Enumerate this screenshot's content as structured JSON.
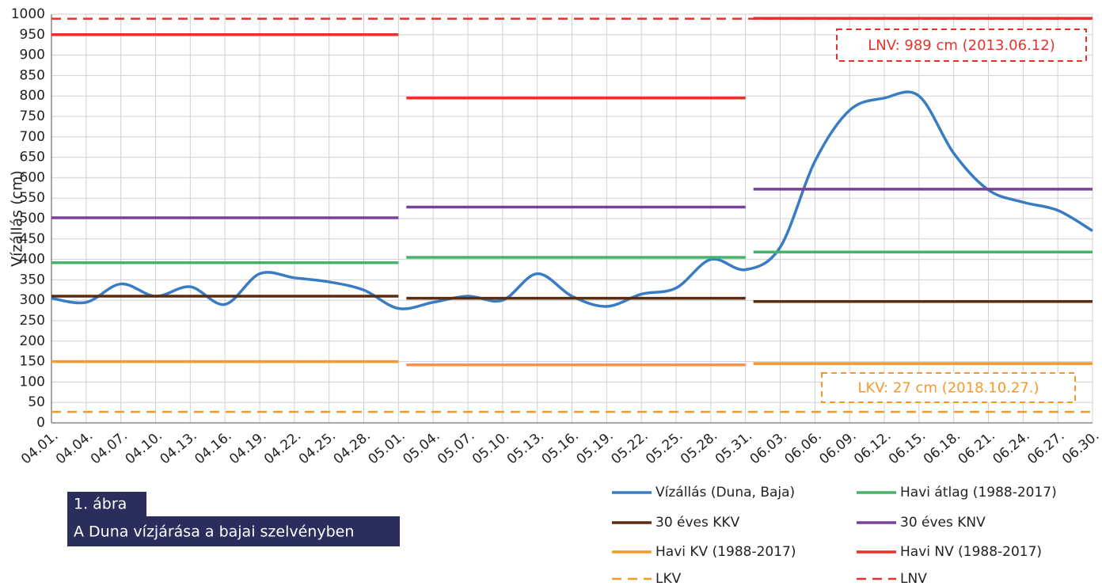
{
  "chart_data": {
    "type": "line",
    "y_label": "Vízállás (cm)",
    "categories": [
      "04.01.",
      "04.04.",
      "04.07.",
      "04.10.",
      "04.13.",
      "04.16.",
      "04.19.",
      "04.22.",
      "04.25.",
      "04.28.",
      "05.01.",
      "05.04.",
      "05.07.",
      "05.10.",
      "05.13.",
      "05.16.",
      "05.19.",
      "05.22.",
      "05.25.",
      "05.28.",
      "05.31.",
      "06.03.",
      "06.06.",
      "06.09.",
      "06.12.",
      "06.15.",
      "06.18.",
      "06.21.",
      "06.24.",
      "06.27.",
      "06.30."
    ],
    "ylim": [
      0,
      1000
    ],
    "yticks": [
      0,
      50,
      100,
      150,
      200,
      250,
      300,
      350,
      400,
      450,
      500,
      550,
      600,
      650,
      700,
      750,
      800,
      850,
      900,
      950,
      1000
    ],
    "grid": true,
    "series": [
      {
        "name": "Vízállás (Duna, Baja)",
        "color": "#3a7cc3",
        "style": "smooth",
        "values": [
          305,
          295,
          340,
          310,
          333,
          290,
          365,
          355,
          345,
          325,
          280,
          295,
          310,
          300,
          365,
          310,
          285,
          315,
          330,
          400,
          375,
          430,
          640,
          765,
          795,
          800,
          660,
          570,
          540,
          520,
          470
        ]
      },
      {
        "name": "Havi átlag (1988-2017)",
        "color": "#45b36b",
        "style": "step",
        "values": [
          392,
          392,
          392,
          392,
          392,
          392,
          392,
          392,
          392,
          392,
          392,
          405,
          405,
          405,
          405,
          405,
          405,
          405,
          405,
          405,
          405,
          418,
          418,
          418,
          418,
          418,
          418,
          418,
          418,
          418,
          418
        ]
      },
      {
        "name": "30 éves KKV",
        "color": "#5b2c0e",
        "style": "step",
        "values": [
          310,
          310,
          310,
          310,
          310,
          310,
          310,
          310,
          310,
          310,
          310,
          305,
          305,
          305,
          305,
          305,
          305,
          305,
          305,
          305,
          305,
          297,
          297,
          297,
          297,
          297,
          297,
          297,
          297,
          297,
          297
        ]
      },
      {
        "name": "30 éves KNV",
        "color": "#7b3f9e",
        "style": "step",
        "values": [
          502,
          502,
          502,
          502,
          502,
          502,
          502,
          502,
          502,
          502,
          502,
          528,
          528,
          528,
          528,
          528,
          528,
          528,
          528,
          528,
          528,
          572,
          572,
          572,
          572,
          572,
          572,
          572,
          572,
          572,
          572
        ]
      },
      {
        "name": "Havi KV (1988-2017)",
        "color": "#f39a2b",
        "style": "step",
        "values": [
          150,
          150,
          150,
          150,
          150,
          150,
          150,
          150,
          150,
          150,
          150,
          142,
          142,
          142,
          142,
          142,
          142,
          142,
          142,
          142,
          142,
          145,
          145,
          145,
          145,
          145,
          145,
          145,
          145,
          145,
          145
        ]
      },
      {
        "name": "Havi NV (1988-2017)",
        "color": "#e6332a",
        "style": "step",
        "values": [
          950,
          950,
          950,
          950,
          950,
          950,
          950,
          950,
          950,
          950,
          950,
          795,
          795,
          795,
          795,
          795,
          795,
          795,
          795,
          795,
          795,
          990,
          990,
          990,
          990,
          990,
          990,
          990,
          990,
          990,
          990
        ]
      },
      {
        "name": "LKV",
        "color": "#f39a2b",
        "style": "dashed",
        "value": 27
      },
      {
        "name": "LNV",
        "color": "#e6332a",
        "style": "dashed",
        "value": 989
      }
    ],
    "annotations": [
      {
        "text": "LNV: 989 cm (2013.06.12)",
        "color": "#e6332a"
      },
      {
        "text": "LKV: 27 cm (2018.10.27.)",
        "color": "#f39a2b"
      }
    ],
    "figure_number": "1. ábra",
    "caption": "A Duna vízjárása a bajai szelvényben"
  }
}
